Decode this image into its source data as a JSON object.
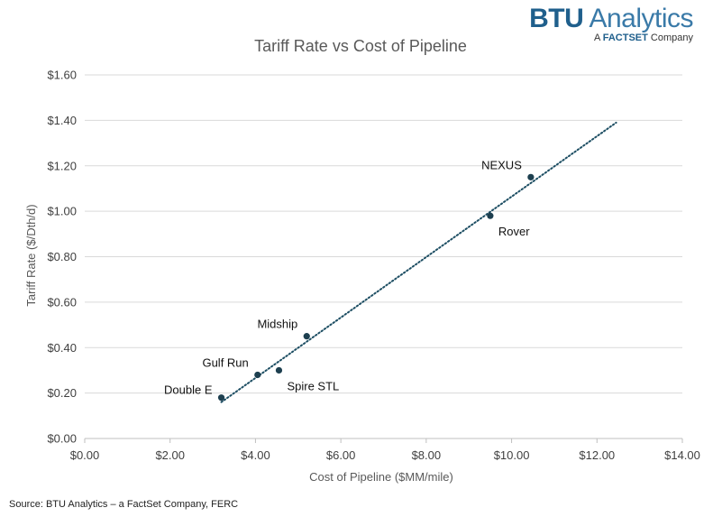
{
  "logo": {
    "brand": "BTU",
    "product": "Analytics",
    "sub_prefix": "A",
    "sub_brand": "FACTSET",
    "sub_suffix": "Company"
  },
  "source_note": "Source: BTU Analytics – a FactSet Company, FERC",
  "chart_data": {
    "type": "scatter",
    "title": "Tariff Rate vs Cost of Pipeline",
    "xlabel": "Cost of Pipeline ($MM/mile)",
    "ylabel": "Tariff Rate ($/Dth/d)",
    "xlim": [
      0,
      14
    ],
    "ylim": [
      0,
      1.6
    ],
    "x_ticks": [
      0,
      2,
      4,
      6,
      8,
      10,
      12,
      14
    ],
    "x_tick_labels": [
      "$0.00",
      "$2.00",
      "$4.00",
      "$6.00",
      "$8.00",
      "$10.00",
      "$12.00",
      "$14.00"
    ],
    "y_ticks": [
      0,
      0.2,
      0.4,
      0.6,
      0.8,
      1.0,
      1.2,
      1.4,
      1.6
    ],
    "y_tick_labels": [
      "$0.00",
      "$0.20",
      "$0.40",
      "$0.60",
      "$0.80",
      "$1.00",
      "$1.20",
      "$1.40",
      "$1.60"
    ],
    "grid": "horizontal",
    "points": [
      {
        "label": "Double E",
        "x": 3.2,
        "y": 0.18,
        "label_pos": "left"
      },
      {
        "label": "Gulf Run",
        "x": 4.05,
        "y": 0.28,
        "label_pos": "upper-left"
      },
      {
        "label": "Spire STL",
        "x": 4.55,
        "y": 0.3,
        "label_pos": "lower-right"
      },
      {
        "label": "Midship",
        "x": 5.2,
        "y": 0.45,
        "label_pos": "upper-left"
      },
      {
        "label": "Rover",
        "x": 9.5,
        "y": 0.98,
        "label_pos": "lower-right"
      },
      {
        "label": "NEXUS",
        "x": 10.45,
        "y": 1.15,
        "label_pos": "upper-left"
      }
    ],
    "trendline": {
      "type": "linear",
      "x_start": 3.2,
      "y_start": 0.16,
      "x_end": 12.45,
      "y_end": 1.39
    },
    "colors": {
      "point": "#1d3f4f",
      "trendline": "#1d4e63",
      "grid": "#d9d9d9",
      "axis": "#bfbfbf",
      "text": "#404040"
    }
  }
}
